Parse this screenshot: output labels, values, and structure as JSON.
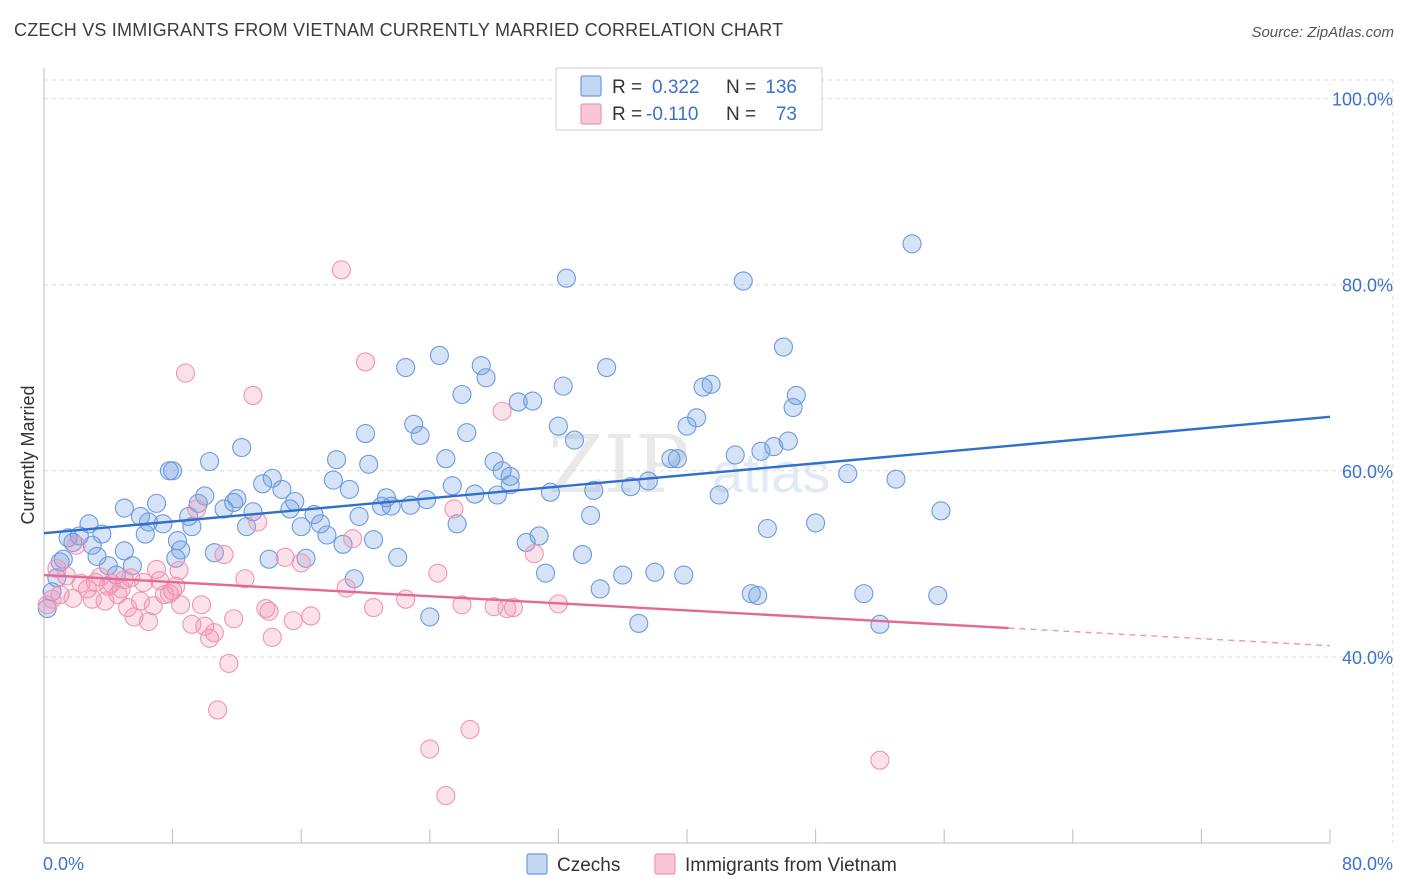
{
  "title": "CZECH VS IMMIGRANTS FROM VIETNAM CURRENTLY MARRIED CORRELATION CHART",
  "source": "Source: ZipAtlas.com",
  "watermark": {
    "zip": "ZIP",
    "atlas": "atlas"
  },
  "legend_box": {
    "r_label": "R =",
    "n_label": "N =",
    "rows": [
      {
        "r": "0.322",
        "n": "136"
      },
      {
        "r": "-0.110",
        "n": "73"
      }
    ]
  },
  "bottom_legend": [
    "Czechs",
    "Immigrants from Vietnam"
  ],
  "chart_data": {
    "type": "scatter",
    "title": "CZECH VS IMMIGRANTS FROM VIETNAM CURRENTLY MARRIED CORRELATION CHART",
    "xlabel": "",
    "ylabel": "Currently Married",
    "xlim": [
      0,
      80
    ],
    "ylim": [
      20,
      102
    ],
    "x_tick_labels": [
      "0.0%",
      "80.0%"
    ],
    "y_tick_labels": [
      "40.0%",
      "60.0%",
      "80.0%",
      "100.0%"
    ],
    "y_ticks": [
      40,
      60,
      80,
      100
    ],
    "grid": true,
    "colors": {
      "czechs": "#6a9be0",
      "vietnam": "#f094b4",
      "czechs_line": "#2f6fce",
      "vietnam_line": "#e36a96"
    },
    "series": [
      {
        "name": "Czechs",
        "R": 0.322,
        "N": 136,
        "trend": {
          "x0": 0,
          "y0": 53.3,
          "x1": 80,
          "y1": 65.8
        },
        "points": [
          [
            0.2,
            45.2
          ],
          [
            0.5,
            47
          ],
          [
            0.8,
            48.5
          ],
          [
            1,
            50.2
          ],
          [
            1.2,
            50.5
          ],
          [
            1.5,
            52.8
          ],
          [
            1.8,
            52.3
          ],
          [
            2.2,
            53
          ],
          [
            2.8,
            54.3
          ],
          [
            3,
            52
          ],
          [
            3.3,
            50.8
          ],
          [
            3.6,
            53.2
          ],
          [
            4,
            49.8
          ],
          [
            4.5,
            48.8
          ],
          [
            5,
            51.4
          ],
          [
            5,
            56
          ],
          [
            5.5,
            49.8
          ],
          [
            6,
            55.1
          ],
          [
            6.3,
            53.2
          ],
          [
            6.5,
            54.5
          ],
          [
            7,
            56.5
          ],
          [
            7.4,
            54.3
          ],
          [
            7.8,
            60
          ],
          [
            8,
            60
          ],
          [
            8.2,
            50.6
          ],
          [
            8.3,
            52.5
          ],
          [
            8.5,
            51.5
          ],
          [
            9,
            55.1
          ],
          [
            9.2,
            54
          ],
          [
            9.6,
            56.5
          ],
          [
            10,
            57.3
          ],
          [
            10.3,
            61
          ],
          [
            10.6,
            51.2
          ],
          [
            11.2,
            55.9
          ],
          [
            11.8,
            56.6
          ],
          [
            12,
            57
          ],
          [
            12.3,
            62.5
          ],
          [
            12.6,
            54
          ],
          [
            13,
            55.6
          ],
          [
            13.6,
            58.6
          ],
          [
            14,
            50.5
          ],
          [
            14.2,
            59.2
          ],
          [
            14.8,
            58
          ],
          [
            15.3,
            55.9
          ],
          [
            15.6,
            56.7
          ],
          [
            16,
            54
          ],
          [
            16.3,
            50.6
          ],
          [
            16.8,
            55.3
          ],
          [
            17.2,
            54.3
          ],
          [
            17.6,
            53.1
          ],
          [
            18,
            59
          ],
          [
            18.2,
            61.2
          ],
          [
            18.6,
            52.1
          ],
          [
            19,
            58
          ],
          [
            19.3,
            48.4
          ],
          [
            19.6,
            55.1
          ],
          [
            20,
            64
          ],
          [
            20.2,
            60.7
          ],
          [
            20.5,
            52.6
          ],
          [
            21,
            56.2
          ],
          [
            21.3,
            57.1
          ],
          [
            21.6,
            56.2
          ],
          [
            22,
            50.7
          ],
          [
            22.5,
            71.1
          ],
          [
            22.8,
            56.3
          ],
          [
            23,
            65
          ],
          [
            23.4,
            63.8
          ],
          [
            23.8,
            56.9
          ],
          [
            24,
            44.3
          ],
          [
            24.6,
            72.4
          ],
          [
            25,
            61.3
          ],
          [
            25.4,
            58.4
          ],
          [
            25.7,
            54.3
          ],
          [
            26,
            68.2
          ],
          [
            26.3,
            64.1
          ],
          [
            26.8,
            57.5
          ],
          [
            27.2,
            71.3
          ],
          [
            27.5,
            70
          ],
          [
            28,
            61
          ],
          [
            28.2,
            57.4
          ],
          [
            28.5,
            60
          ],
          [
            29,
            59.4
          ],
          [
            29,
            58.5
          ],
          [
            29.5,
            67.4
          ],
          [
            30,
            52.3
          ],
          [
            30.4,
            67.5
          ],
          [
            30.8,
            53
          ],
          [
            31.2,
            49
          ],
          [
            31.5,
            57.7
          ],
          [
            32,
            64.8
          ],
          [
            32.3,
            69.1
          ],
          [
            32.5,
            80.7
          ],
          [
            33,
            63.3
          ],
          [
            33.5,
            51
          ],
          [
            34,
            55.2
          ],
          [
            34.2,
            57.9
          ],
          [
            34.6,
            47.3
          ],
          [
            35,
            71.1
          ],
          [
            36,
            48.8
          ],
          [
            36.5,
            58.3
          ],
          [
            37,
            43.6
          ],
          [
            37.6,
            58.9
          ],
          [
            38,
            49.1
          ],
          [
            39,
            61.3
          ],
          [
            39.4,
            61.3
          ],
          [
            39.8,
            48.8
          ],
          [
            40,
            64.8
          ],
          [
            40.6,
            65.7
          ],
          [
            41,
            69
          ],
          [
            41.5,
            69.3
          ],
          [
            42,
            57.4
          ],
          [
            43,
            61.7
          ],
          [
            43.5,
            80.4
          ],
          [
            44,
            46.8
          ],
          [
            44.4,
            46.6
          ],
          [
            44.6,
            62.1
          ],
          [
            45,
            53.8
          ],
          [
            45.4,
            62.6
          ],
          [
            46,
            73.3
          ],
          [
            46.3,
            63.2
          ],
          [
            46.6,
            66.8
          ],
          [
            46.8,
            68.1
          ],
          [
            48,
            54.4
          ],
          [
            50,
            59.7
          ],
          [
            51,
            46.8
          ],
          [
            52,
            43.5
          ],
          [
            53,
            59.1
          ],
          [
            54,
            84.4
          ],
          [
            55.6,
            46.6
          ],
          [
            55.8,
            55.7
          ]
        ]
      },
      {
        "name": "Immigrants from Vietnam",
        "R": -0.11,
        "N": 73,
        "trend": {
          "x0": 0,
          "y0": 48.8,
          "x1": 60,
          "y1": 43.1,
          "x_dash_end": 80,
          "y_dash_end": 41.2
        },
        "points": [
          [
            0.2,
            45.6
          ],
          [
            0.5,
            46.2
          ],
          [
            0.8,
            49.5
          ],
          [
            1,
            46.7
          ],
          [
            1.4,
            48.7
          ],
          [
            1.8,
            46.3
          ],
          [
            2,
            52
          ],
          [
            2.3,
            47.9
          ],
          [
            2.7,
            47.3
          ],
          [
            3,
            46.2
          ],
          [
            3.2,
            48
          ],
          [
            3.5,
            48.6
          ],
          [
            3.8,
            46
          ],
          [
            4,
            47.6
          ],
          [
            4.2,
            47.9
          ],
          [
            4.6,
            46.7
          ],
          [
            4.8,
            47.3
          ],
          [
            5,
            48.3
          ],
          [
            5.2,
            45.3
          ],
          [
            5.4,
            48.5
          ],
          [
            5.6,
            44.3
          ],
          [
            6,
            46
          ],
          [
            6.2,
            48
          ],
          [
            6.5,
            43.8
          ],
          [
            6.8,
            45.5
          ],
          [
            7,
            49.4
          ],
          [
            7.2,
            48.2
          ],
          [
            7.5,
            46.7
          ],
          [
            7.8,
            46.8
          ],
          [
            8,
            47.1
          ],
          [
            8.2,
            47.6
          ],
          [
            8.4,
            49.3
          ],
          [
            8.5,
            45.6
          ],
          [
            8.8,
            70.5
          ],
          [
            9.2,
            43.5
          ],
          [
            9.5,
            55.9
          ],
          [
            9.8,
            45.6
          ],
          [
            10,
            43.3
          ],
          [
            10.3,
            42
          ],
          [
            10.6,
            42.6
          ],
          [
            10.8,
            34.3
          ],
          [
            11.2,
            51
          ],
          [
            11.5,
            39.3
          ],
          [
            11.8,
            44.1
          ],
          [
            12.5,
            48.4
          ],
          [
            13,
            68.1
          ],
          [
            13.3,
            54.5
          ],
          [
            13.8,
            45.2
          ],
          [
            14,
            44.9
          ],
          [
            14.2,
            42.1
          ],
          [
            15,
            50.7
          ],
          [
            15.5,
            43.9
          ],
          [
            16,
            50.1
          ],
          [
            16.6,
            44.4
          ],
          [
            18.5,
            81.6
          ],
          [
            18.8,
            47.4
          ],
          [
            19.2,
            52.7
          ],
          [
            20,
            71.7
          ],
          [
            20.5,
            45.3
          ],
          [
            22.5,
            46.2
          ],
          [
            24,
            30.1
          ],
          [
            24.5,
            49
          ],
          [
            25,
            25.1
          ],
          [
            25.5,
            55.9
          ],
          [
            26,
            45.6
          ],
          [
            26.5,
            32.2
          ],
          [
            28,
            45.4
          ],
          [
            28.5,
            66.4
          ],
          [
            28.8,
            45.2
          ],
          [
            29.2,
            45.3
          ],
          [
            30.5,
            51.1
          ],
          [
            32,
            45.7
          ],
          [
            52,
            28.9
          ]
        ]
      }
    ]
  }
}
